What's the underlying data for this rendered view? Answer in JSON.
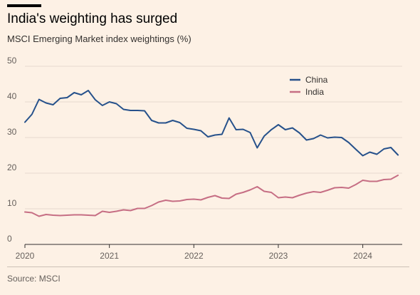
{
  "title": "India's weighting has surged",
  "subtitle": "MSCI Emerging Market index weightings (%)",
  "source": "Source: MSCI",
  "chart_data": {
    "type": "line",
    "xlabel": "",
    "ylabel": "",
    "ylim": [
      0,
      50
    ],
    "yticks": [
      0,
      10,
      20,
      30,
      40,
      50
    ],
    "xlim": [
      2020.0,
      2024.45
    ],
    "xticks": [
      2020,
      2021,
      2022,
      2023,
      2024
    ],
    "xtick_labels": [
      "2020",
      "2021",
      "2022",
      "2023",
      "2024"
    ],
    "grid": "horizontal",
    "legend_position": "top-right",
    "series": [
      {
        "name": "China",
        "color": "#26518b",
        "x": [
          2020.0,
          2020.083,
          2020.167,
          2020.25,
          2020.333,
          2020.417,
          2020.5,
          2020.583,
          2020.667,
          2020.75,
          2020.833,
          2020.917,
          2021.0,
          2021.083,
          2021.167,
          2021.25,
          2021.333,
          2021.417,
          2021.5,
          2021.583,
          2021.667,
          2021.75,
          2021.833,
          2021.917,
          2022.0,
          2022.083,
          2022.167,
          2022.25,
          2022.333,
          2022.417,
          2022.5,
          2022.583,
          2022.667,
          2022.75,
          2022.833,
          2022.917,
          2023.0,
          2023.083,
          2023.167,
          2023.25,
          2023.333,
          2023.417,
          2023.5,
          2023.583,
          2023.667,
          2023.75,
          2023.833,
          2023.917,
          2024.0,
          2024.083,
          2024.167,
          2024.25,
          2024.333,
          2024.417
        ],
        "values": [
          34.3,
          36.5,
          40.7,
          39.7,
          39.2,
          41.0,
          41.2,
          42.6,
          42.0,
          43.2,
          40.6,
          39.0,
          40.0,
          39.5,
          37.9,
          37.6,
          37.6,
          37.5,
          34.8,
          34.1,
          34.1,
          34.8,
          34.2,
          32.6,
          32.3,
          31.9,
          30.2,
          30.7,
          30.9,
          35.5,
          32.2,
          32.3,
          31.4,
          27.1,
          30.4,
          32.2,
          33.6,
          32.2,
          32.7,
          31.3,
          29.3,
          29.7,
          30.7,
          29.9,
          30.1,
          30.0,
          28.6,
          26.7,
          24.9,
          25.9,
          25.3,
          26.8,
          27.2,
          25.1
        ]
      },
      {
        "name": "India",
        "color": "#c66e84",
        "x": [
          2020.0,
          2020.083,
          2020.167,
          2020.25,
          2020.333,
          2020.417,
          2020.5,
          2020.583,
          2020.667,
          2020.75,
          2020.833,
          2020.917,
          2021.0,
          2021.083,
          2021.167,
          2021.25,
          2021.333,
          2021.417,
          2021.5,
          2021.583,
          2021.667,
          2021.75,
          2021.833,
          2021.917,
          2022.0,
          2022.083,
          2022.167,
          2022.25,
          2022.333,
          2022.417,
          2022.5,
          2022.583,
          2022.667,
          2022.75,
          2022.833,
          2022.917,
          2023.0,
          2023.083,
          2023.167,
          2023.25,
          2023.333,
          2023.417,
          2023.5,
          2023.583,
          2023.667,
          2023.75,
          2023.833,
          2023.917,
          2024.0,
          2024.083,
          2024.167,
          2024.25,
          2024.333,
          2024.417
        ],
        "values": [
          9.1,
          8.9,
          7.9,
          8.4,
          8.2,
          8.1,
          8.2,
          8.3,
          8.3,
          8.2,
          8.1,
          9.3,
          9.0,
          9.3,
          9.7,
          9.5,
          10.1,
          10.1,
          10.9,
          11.9,
          12.4,
          12.1,
          12.2,
          12.6,
          12.7,
          12.5,
          13.2,
          13.7,
          13.0,
          12.9,
          14.1,
          14.6,
          15.3,
          16.2,
          14.9,
          14.6,
          13.1,
          13.3,
          13.1,
          13.8,
          14.4,
          14.8,
          14.6,
          15.2,
          15.9,
          16.0,
          15.8,
          16.8,
          18.0,
          17.7,
          17.7,
          18.2,
          18.3,
          19.4
        ]
      }
    ]
  }
}
